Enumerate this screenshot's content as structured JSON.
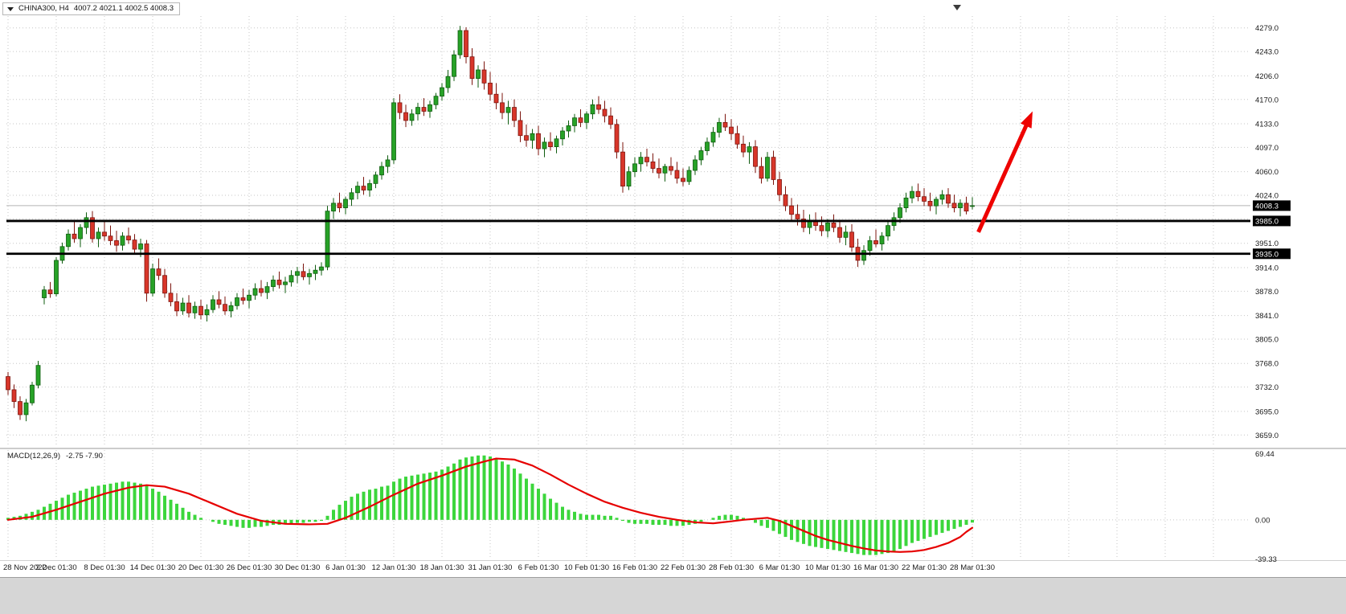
{
  "window": {
    "symbol_timeframe": "CHINA300, H4",
    "ohlc": "4007.2 4021.1 4002.5 4008.3"
  },
  "colors": {
    "background": "#ffffff",
    "grid": "#c6c6c6",
    "bull": "#27a227",
    "bull_dark": "#0f5c0f",
    "bear": "#d8362a",
    "bear_dark": "#7c150e",
    "macd_hist": "#3cd63c",
    "macd_signal": "#e60000",
    "hline": "#000000",
    "tag_bg": "#000000",
    "arrow": "#ee0200",
    "bottom_strip": "#d6d6d6"
  },
  "chart_data": {
    "type": "candlestick",
    "symbol": "CHINA300",
    "timeframe": "H4",
    "price_axis": {
      "min": 3641,
      "max": 4297,
      "ticks": [
        {
          "label": "4279.0",
          "value": 4279
        },
        {
          "label": "4243.0",
          "value": 4243
        },
        {
          "label": "4206.0",
          "value": 4206
        },
        {
          "label": "4170.0",
          "value": 4170
        },
        {
          "label": "4133.0",
          "value": 4133
        },
        {
          "label": "4097.0",
          "value": 4097
        },
        {
          "label": "4060.0",
          "value": 4060
        },
        {
          "label": "4024.0",
          "value": 4024
        },
        {
          "label": "3988.0",
          "value": 3988
        },
        {
          "label": "3951.0",
          "value": 3951
        },
        {
          "label": "3914.0",
          "value": 3914
        },
        {
          "label": "3878.0",
          "value": 3878
        },
        {
          "label": "3841.0",
          "value": 3841
        },
        {
          "label": "3805.0",
          "value": 3805
        },
        {
          "label": "3768.0",
          "value": 3768
        },
        {
          "label": "3732.0",
          "value": 3732
        },
        {
          "label": "3695.0",
          "value": 3695
        },
        {
          "label": "3659.0",
          "value": 3659
        }
      ]
    },
    "time_labels": [
      "28 Nov 2022",
      "2 Dec 01:30",
      "8 Dec 01:30",
      "14 Dec 01:30",
      "20 Dec 01:30",
      "26 Dec 01:30",
      "30 Dec 01:30",
      "6 Jan 01:30",
      "12 Jan 01:30",
      "18 Jan 01:30",
      "31 Jan 01:30",
      "6 Feb 01:30",
      "10 Feb 01:30",
      "16 Feb 01:30",
      "22 Feb 01:30",
      "28 Feb 01:30",
      "6 Mar 01:30",
      "10 Mar 01:30",
      "16 Mar 01:30",
      "22 Mar 01:30",
      "28 Mar 01:30"
    ],
    "candles": [
      [
        3748,
        3755,
        3720,
        3728
      ],
      [
        3728,
        3736,
        3700,
        3710
      ],
      [
        3710,
        3718,
        3682,
        3690
      ],
      [
        3690,
        3714,
        3680,
        3708
      ],
      [
        3708,
        3740,
        3704,
        3735
      ],
      [
        3735,
        3772,
        3730,
        3765
      ],
      [
        3868,
        3886,
        3858,
        3880
      ],
      [
        3880,
        3892,
        3868,
        3874
      ],
      [
        3874,
        3930,
        3870,
        3925
      ],
      [
        3925,
        3952,
        3920,
        3946
      ],
      [
        3946,
        3972,
        3940,
        3965
      ],
      [
        3965,
        3985,
        3952,
        3958
      ],
      [
        3958,
        3980,
        3945,
        3975
      ],
      [
        3975,
        3998,
        3965,
        3990
      ],
      [
        3990,
        4000,
        3952,
        3958
      ],
      [
        3958,
        3975,
        3945,
        3968
      ],
      [
        3968,
        3985,
        3955,
        3962
      ],
      [
        3962,
        3978,
        3948,
        3955
      ],
      [
        3955,
        3970,
        3938,
        3948
      ],
      [
        3948,
        3968,
        3940,
        3962
      ],
      [
        3962,
        3975,
        3950,
        3956
      ],
      [
        3956,
        3965,
        3935,
        3942
      ],
      [
        3942,
        3958,
        3930,
        3950
      ],
      [
        3950,
        3956,
        3862,
        3875
      ],
      [
        3875,
        3920,
        3870,
        3912
      ],
      [
        3912,
        3928,
        3895,
        3902
      ],
      [
        3902,
        3912,
        3868,
        3875
      ],
      [
        3875,
        3890,
        3855,
        3862
      ],
      [
        3862,
        3875,
        3840,
        3848
      ],
      [
        3848,
        3868,
        3842,
        3860
      ],
      [
        3860,
        3872,
        3838,
        3845
      ],
      [
        3845,
        3862,
        3836,
        3855
      ],
      [
        3855,
        3865,
        3835,
        3842
      ],
      [
        3842,
        3858,
        3832,
        3850
      ],
      [
        3850,
        3872,
        3845,
        3865
      ],
      [
        3865,
        3878,
        3852,
        3858
      ],
      [
        3858,
        3870,
        3842,
        3848
      ],
      [
        3848,
        3862,
        3838,
        3856
      ],
      [
        3856,
        3875,
        3850,
        3868
      ],
      [
        3868,
        3882,
        3858,
        3864
      ],
      [
        3864,
        3880,
        3852,
        3872
      ],
      [
        3872,
        3890,
        3865,
        3882
      ],
      [
        3882,
        3895,
        3870,
        3876
      ],
      [
        3876,
        3892,
        3866,
        3885
      ],
      [
        3885,
        3902,
        3878,
        3895
      ],
      [
        3895,
        3908,
        3882,
        3888
      ],
      [
        3888,
        3900,
        3875,
        3892
      ],
      [
        3892,
        3910,
        3885,
        3902
      ],
      [
        3902,
        3915,
        3890,
        3908
      ],
      [
        3908,
        3920,
        3895,
        3900
      ],
      [
        3900,
        3912,
        3888,
        3905
      ],
      [
        3905,
        3918,
        3895,
        3910
      ],
      [
        3910,
        3922,
        3902,
        3915
      ],
      [
        3915,
        4008,
        3910,
        4000
      ],
      [
        4000,
        4020,
        3988,
        4012
      ],
      [
        4012,
        4028,
        3998,
        4005
      ],
      [
        4005,
        4022,
        3995,
        4018
      ],
      [
        4018,
        4035,
        4008,
        4028
      ],
      [
        4028,
        4045,
        4018,
        4038
      ],
      [
        4038,
        4052,
        4025,
        4032
      ],
      [
        4032,
        4048,
        4022,
        4042
      ],
      [
        4042,
        4060,
        4035,
        4055
      ],
      [
        4055,
        4075,
        4048,
        4068
      ],
      [
        4068,
        4085,
        4058,
        4078
      ],
      [
        4078,
        4172,
        4072,
        4165
      ],
      [
        4165,
        4178,
        4140,
        4150
      ],
      [
        4150,
        4162,
        4128,
        4138
      ],
      [
        4138,
        4155,
        4130,
        4148
      ],
      [
        4148,
        4165,
        4138,
        4158
      ],
      [
        4158,
        4172,
        4145,
        4152
      ],
      [
        4152,
        4168,
        4142,
        4162
      ],
      [
        4162,
        4180,
        4155,
        4175
      ],
      [
        4175,
        4195,
        4168,
        4188
      ],
      [
        4188,
        4215,
        4180,
        4205
      ],
      [
        4205,
        4245,
        4198,
        4238
      ],
      [
        4238,
        4282,
        4232,
        4275
      ],
      [
        4275,
        4280,
        4225,
        4235
      ],
      [
        4235,
        4248,
        4192,
        4202
      ],
      [
        4202,
        4222,
        4188,
        4215
      ],
      [
        4215,
        4228,
        4185,
        4195
      ],
      [
        4195,
        4212,
        4168,
        4178
      ],
      [
        4178,
        4195,
        4155,
        4165
      ],
      [
        4165,
        4180,
        4140,
        4150
      ],
      [
        4150,
        4168,
        4132,
        4158
      ],
      [
        4158,
        4170,
        4128,
        4138
      ],
      [
        4138,
        4152,
        4105,
        4115
      ],
      [
        4115,
        4132,
        4098,
        4108
      ],
      [
        4108,
        4125,
        4095,
        4118
      ],
      [
        4118,
        4130,
        4085,
        4095
      ],
      [
        4095,
        4112,
        4082,
        4105
      ],
      [
        4105,
        4120,
        4092,
        4098
      ],
      [
        4098,
        4115,
        4088,
        4110
      ],
      [
        4110,
        4128,
        4100,
        4122
      ],
      [
        4122,
        4138,
        4112,
        4130
      ],
      [
        4130,
        4148,
        4120,
        4142
      ],
      [
        4142,
        4155,
        4128,
        4135
      ],
      [
        4135,
        4152,
        4125,
        4148
      ],
      [
        4148,
        4170,
        4140,
        4162
      ],
      [
        4162,
        4175,
        4148,
        4155
      ],
      [
        4155,
        4168,
        4135,
        4145
      ],
      [
        4145,
        4158,
        4125,
        4132
      ],
      [
        4132,
        4140,
        4080,
        4090
      ],
      [
        4090,
        4105,
        4028,
        4038
      ],
      [
        4038,
        4068,
        4032,
        4060
      ],
      [
        4060,
        4082,
        4052,
        4072
      ],
      [
        4072,
        4090,
        4060,
        4082
      ],
      [
        4082,
        4095,
        4068,
        4075
      ],
      [
        4075,
        4088,
        4058,
        4065
      ],
      [
        4065,
        4080,
        4050,
        4058
      ],
      [
        4058,
        4072,
        4045,
        4068
      ],
      [
        4068,
        4082,
        4055,
        4062
      ],
      [
        4062,
        4075,
        4042,
        4050
      ],
      [
        4050,
        4065,
        4038,
        4045
      ],
      [
        4045,
        4068,
        4040,
        4062
      ],
      [
        4062,
        4085,
        4055,
        4078
      ],
      [
        4078,
        4098,
        4070,
        4092
      ],
      [
        4092,
        4112,
        4085,
        4105
      ],
      [
        4105,
        4128,
        4098,
        4120
      ],
      [
        4120,
        4142,
        4112,
        4135
      ],
      [
        4135,
        4148,
        4122,
        4128
      ],
      [
        4128,
        4140,
        4108,
        4118
      ],
      [
        4118,
        4130,
        4095,
        4102
      ],
      [
        4102,
        4115,
        4082,
        4090
      ],
      [
        4090,
        4105,
        4072,
        4098
      ],
      [
        4098,
        4108,
        4058,
        4068
      ],
      [
        4068,
        4082,
        4042,
        4050
      ],
      [
        4050,
        4090,
        4045,
        4082
      ],
      [
        4082,
        4092,
        4040,
        4048
      ],
      [
        4048,
        4060,
        4015,
        4025
      ],
      [
        4025,
        4038,
        4000,
        4008
      ],
      [
        4008,
        4020,
        3985,
        3995
      ],
      [
        3995,
        4010,
        3978,
        3988
      ],
      [
        3988,
        4002,
        3968,
        3975
      ],
      [
        3975,
        3995,
        3965,
        3985
      ],
      [
        3985,
        3998,
        3970,
        3978
      ],
      [
        3978,
        3992,
        3962,
        3970
      ],
      [
        3970,
        3988,
        3960,
        3982
      ],
      [
        3982,
        3995,
        3968,
        3975
      ],
      [
        3975,
        3985,
        3952,
        3960
      ],
      [
        3960,
        3978,
        3948,
        3968
      ],
      [
        3968,
        3980,
        3938,
        3945
      ],
      [
        3945,
        3958,
        3915,
        3925
      ],
      [
        3925,
        3948,
        3918,
        3940
      ],
      [
        3940,
        3962,
        3932,
        3955
      ],
      [
        3955,
        3972,
        3945,
        3950
      ],
      [
        3950,
        3968,
        3940,
        3962
      ],
      [
        3962,
        3985,
        3955,
        3978
      ],
      [
        3978,
        3998,
        3970,
        3990
      ],
      [
        3990,
        4012,
        3982,
        4005
      ],
      [
        4005,
        4028,
        3998,
        4020
      ],
      [
        4020,
        4038,
        4012,
        4030
      ],
      [
        4030,
        4042,
        4015,
        4022
      ],
      [
        4022,
        4035,
        4008,
        4015
      ],
      [
        4015,
        4028,
        4000,
        4008
      ],
      [
        4008,
        4022,
        3995,
        4018
      ],
      [
        4018,
        4032,
        4010,
        4025
      ],
      [
        4025,
        4035,
        4005,
        4012
      ],
      [
        4012,
        4025,
        3998,
        4005
      ],
      [
        4005,
        4018,
        3992,
        4012
      ],
      [
        4012,
        4022,
        3995,
        4000
      ],
      [
        4007.2,
        4021.1,
        4002.5,
        4008.3
      ]
    ],
    "hlines": [
      {
        "price": 3985,
        "label": "3985.0"
      },
      {
        "price": 3935,
        "label": "3935.0"
      }
    ],
    "current_price": {
      "value": 4008.3,
      "label": "4008.3"
    },
    "macd": {
      "title": "MACD(12,26,9)",
      "values": "-2.75 -7.90",
      "max": 69.44,
      "min": -39.33,
      "axis_labels": [
        "69.44",
        "0.00",
        "-39.33"
      ],
      "histogram": [
        2,
        3,
        4,
        6,
        8,
        10,
        13,
        16,
        19,
        22,
        25,
        27,
        29,
        31,
        33,
        34,
        35,
        36,
        37,
        38,
        38,
        37,
        36,
        34,
        31,
        28,
        24,
        20,
        16,
        12,
        8,
        5,
        2,
        0,
        -2,
        -4,
        -5,
        -6,
        -7,
        -8,
        -8,
        -7,
        -7,
        -6,
        -5,
        -5,
        -4,
        -4,
        -3,
        -3,
        -2,
        -2,
        -1,
        4,
        10,
        15,
        19,
        23,
        26,
        28,
        30,
        31,
        33,
        34,
        38,
        41,
        43,
        44,
        45,
        46,
        47,
        48,
        50,
        53,
        56,
        60,
        62,
        63,
        64,
        64,
        63,
        61,
        58,
        55,
        51,
        46,
        41,
        36,
        31,
        26,
        21,
        17,
        13,
        10,
        8,
        6,
        5,
        5,
        5,
        4,
        4,
        2,
        -1,
        -3,
        -4,
        -4,
        -4,
        -5,
        -5,
        -5,
        -6,
        -6,
        -6,
        -5,
        -4,
        -2,
        0,
        2,
        4,
        5,
        5,
        4,
        2,
        0,
        -3,
        -6,
        -8,
        -11,
        -14,
        -17,
        -20,
        -22,
        -24,
        -26,
        -27,
        -28,
        -29,
        -30,
        -31,
        -32,
        -33,
        -34,
        -35,
        -35,
        -35,
        -34,
        -33,
        -31,
        -29,
        -26,
        -23,
        -21,
        -19,
        -17,
        -15,
        -13,
        -11,
        -9,
        -7,
        -5,
        -2.75
      ],
      "signal_points": [
        [
          0,
          0
        ],
        [
          4,
          3
        ],
        [
          8,
          10
        ],
        [
          12,
          18
        ],
        [
          16,
          26
        ],
        [
          20,
          32
        ],
        [
          23,
          34.5
        ],
        [
          26,
          33
        ],
        [
          30,
          26
        ],
        [
          34,
          16
        ],
        [
          38,
          6
        ],
        [
          42,
          -1
        ],
        [
          46,
          -4
        ],
        [
          50,
          -4.5
        ],
        [
          53,
          -4
        ],
        [
          56,
          2
        ],
        [
          60,
          13
        ],
        [
          64,
          25
        ],
        [
          68,
          36
        ],
        [
          72,
          44
        ],
        [
          76,
          53
        ],
        [
          79,
          58
        ],
        [
          81,
          61
        ],
        [
          84,
          60
        ],
        [
          87,
          54
        ],
        [
          90,
          45
        ],
        [
          93,
          35
        ],
        [
          96,
          26
        ],
        [
          99,
          18
        ],
        [
          102,
          12
        ],
        [
          105,
          7
        ],
        [
          108,
          3
        ],
        [
          111,
          0
        ],
        [
          114,
          -2.5
        ],
        [
          117,
          -3.5
        ],
        [
          120,
          -1.5
        ],
        [
          122,
          0
        ],
        [
          124,
          1
        ],
        [
          126,
          2
        ],
        [
          128,
          -1
        ],
        [
          130,
          -6
        ],
        [
          132,
          -11
        ],
        [
          134,
          -16
        ],
        [
          136,
          -20
        ],
        [
          138,
          -23
        ],
        [
          140,
          -26
        ],
        [
          142,
          -28.5
        ],
        [
          144,
          -30.5
        ],
        [
          146,
          -31.5
        ],
        [
          148,
          -32
        ],
        [
          150,
          -31.5
        ],
        [
          152,
          -30
        ],
        [
          154,
          -27
        ],
        [
          156,
          -23
        ],
        [
          158,
          -17
        ],
        [
          159,
          -12
        ],
        [
          160,
          -7.9
        ]
      ]
    },
    "arrow": {
      "from": {
        "index": 161,
        "price": 3968
      },
      "to": {
        "index": 170,
        "price": 4152
      },
      "color": "#ee0200"
    }
  }
}
